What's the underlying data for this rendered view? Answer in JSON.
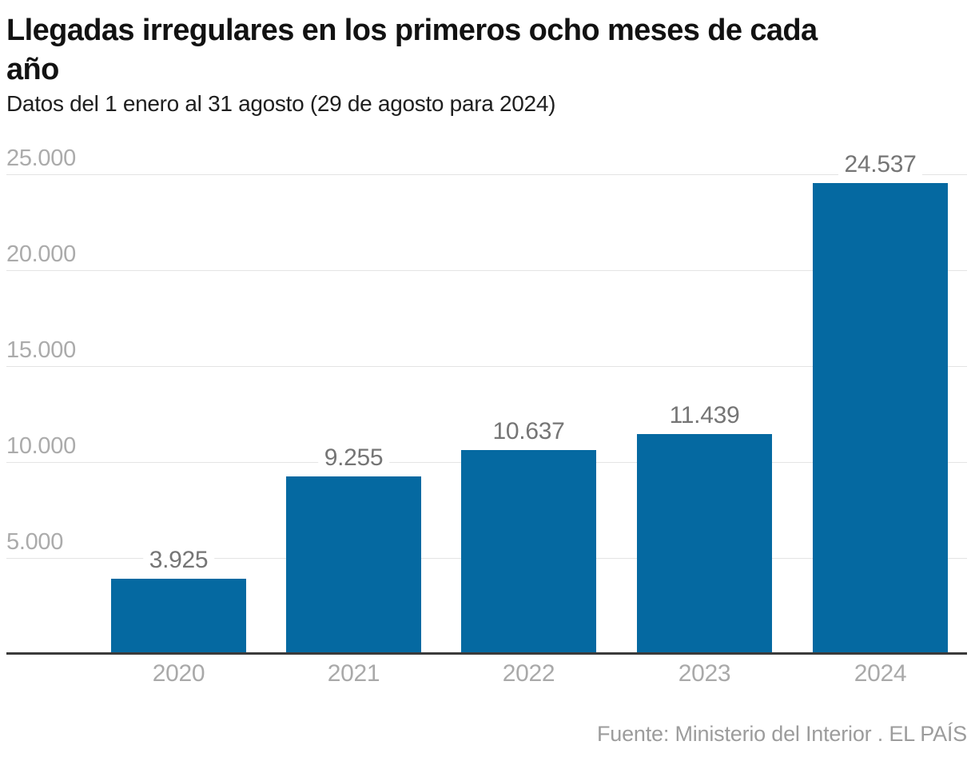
{
  "header": {
    "title_line1": "Llegadas irregulares en los primeros ocho meses de cada",
    "title_line2": "año",
    "subtitle": "Datos del 1 enero al 31 agosto (29 de agosto para 2024)"
  },
  "chart_data": {
    "type": "bar",
    "title": "Llegadas irregulares en los primeros ocho meses de cada año",
    "subtitle": "Datos del 1 enero al 31 agosto (29 de agosto para 2024)",
    "categories": [
      "2020",
      "2021",
      "2022",
      "2023",
      "2024"
    ],
    "values": [
      3925,
      9255,
      10637,
      11439,
      24537
    ],
    "value_labels": [
      "3.925",
      "9.255",
      "10.637",
      "11.439",
      "24.537"
    ],
    "xlabel": "",
    "ylabel": "",
    "ylim": [
      0,
      25000
    ],
    "y_ticks": [
      5000,
      10000,
      15000,
      20000,
      25000
    ],
    "y_tick_labels": [
      "5.000",
      "10.000",
      "15.000",
      "20.000",
      "25.000"
    ],
    "grid": true,
    "legend": "none",
    "bar_color": "#0569a1"
  },
  "footer": {
    "source": "Fuente: Ministerio del Interior . EL PAÍS"
  }
}
